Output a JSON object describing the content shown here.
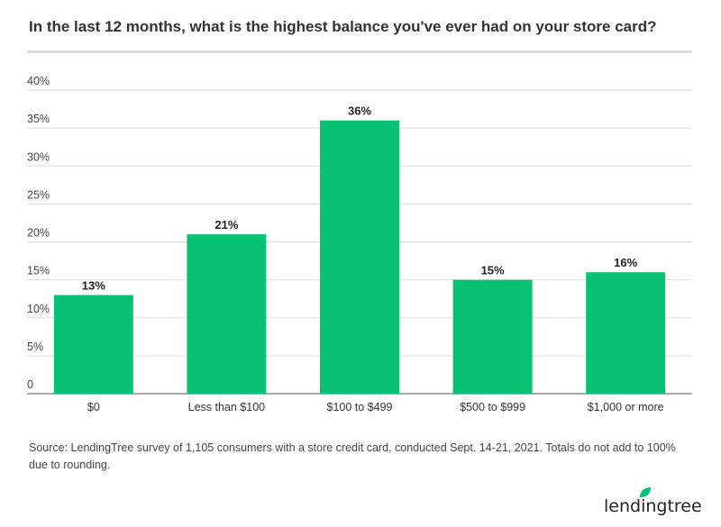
{
  "chart_data": {
    "type": "bar",
    "title": "In the last 12 months, what is the highest balance you've ever had on your store card?",
    "categories": [
      "$0",
      "Less than $100",
      "$100 to $499",
      "$500 to $999",
      "$1,000 or more"
    ],
    "values": [
      13,
      21,
      36,
      15,
      16
    ],
    "data_labels": [
      "13%",
      "21%",
      "36%",
      "15%",
      "16%"
    ],
    "ylim": [
      0,
      40
    ],
    "yticks": [
      0,
      5,
      10,
      15,
      20,
      25,
      30,
      35,
      40
    ],
    "ytick_labels": [
      "0",
      "5%",
      "10%",
      "15%",
      "20%",
      "25%",
      "30%",
      "35%",
      "40%"
    ],
    "grid": true,
    "bar_color": "#0ac273",
    "xlabel": "",
    "ylabel": ""
  },
  "source": "Source: LendingTree survey of 1,105 consumers with a store credit card, conducted Sept. 14-21, 2021. Totals do not add to 100% due to rounding.",
  "logo": {
    "text": "lendingtree",
    "color": "#0ac273"
  }
}
